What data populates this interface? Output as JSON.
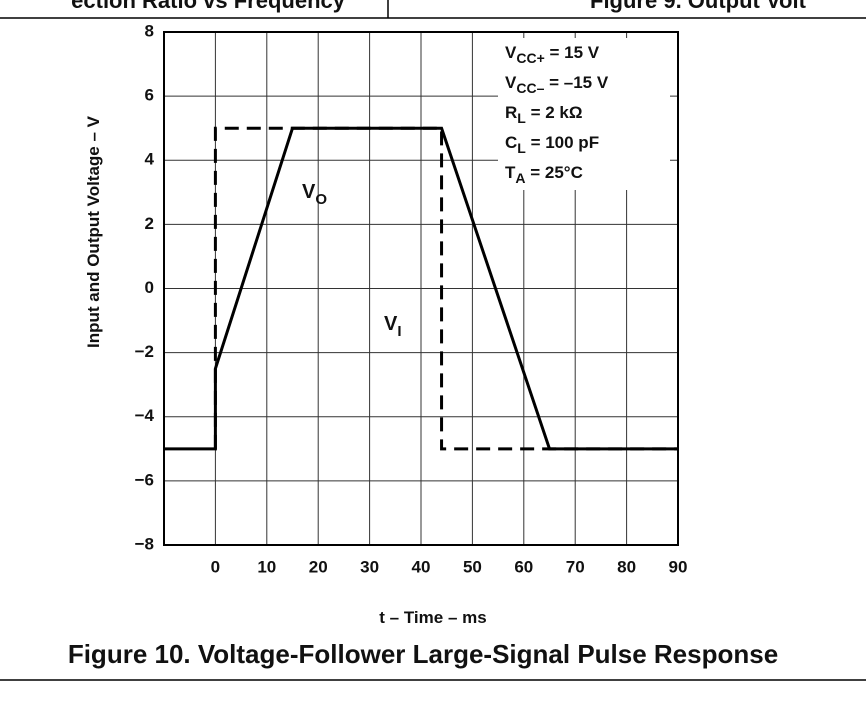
{
  "header": {
    "left": "ection Ratio vs Frequency",
    "right": "Figure 9. Output Volt"
  },
  "chart_data": {
    "type": "line",
    "title": "Figure 10. Voltage-Follower Large-Signal Pulse Response",
    "xlabel": "t – Time – ms",
    "ylabel": "Input and Output Voltage – V",
    "xlim": [
      -10,
      90
    ],
    "xticks": [
      0,
      10,
      20,
      30,
      40,
      50,
      60,
      70,
      80,
      90
    ],
    "ylim": [
      -8,
      8
    ],
    "yticks": [
      {
        "value": -8,
        "label": "−8"
      },
      {
        "value": -6,
        "label": "−6"
      },
      {
        "value": -4,
        "label": "−4"
      },
      {
        "value": -2,
        "label": "−2"
      },
      0,
      2,
      4,
      6,
      8
    ],
    "grid": true,
    "series": [
      {
        "label": {
          "main": "V",
          "sub": "I"
        },
        "color": "#000000",
        "dashed": true,
        "x": [
          0,
          0,
          44,
          44,
          90
        ],
        "values": [
          -5,
          5,
          5,
          -5,
          -5
        ]
      },
      {
        "label": {
          "main": "V",
          "sub": "O"
        },
        "color": "#000000",
        "dashed": false,
        "x": [
          -10,
          0,
          0,
          15,
          44,
          65,
          90
        ],
        "values": [
          -5,
          -5,
          -2.5,
          5,
          5,
          -5,
          -5
        ]
      }
    ],
    "conditions": [
      {
        "main": "V",
        "sub": "CC+",
        "tail": " = 15 V"
      },
      {
        "main": "V",
        "sub": "CC–",
        "tail": " = –15 V"
      },
      {
        "main": "R",
        "sub": "L",
        "tail": " = 2 kΩ"
      },
      {
        "main": "C",
        "sub": "L",
        "tail": " = 100 pF"
      },
      {
        "main": "T",
        "sub": "A",
        "tail": " = 25°C"
      }
    ]
  }
}
